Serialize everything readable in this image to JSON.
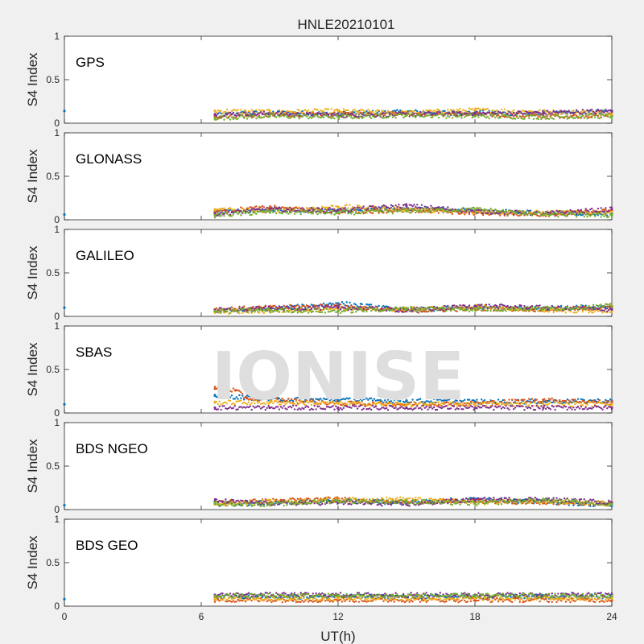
{
  "chart_data": {
    "type": "scatter",
    "title": "HNLE20210101",
    "xlabel": "UT(h)",
    "ylabel": "S4 Index",
    "xlim": [
      0,
      24
    ],
    "ylim": [
      0,
      1
    ],
    "xticks": [
      "0",
      "6",
      "12",
      "18",
      "24"
    ],
    "yticks": [
      "0",
      "0.5",
      "1"
    ],
    "watermark": "IONISE",
    "grid": false,
    "colors": [
      "#0072BD",
      "#D95319",
      "#EDB120",
      "#7E2F8E",
      "#77AC30",
      "#4DBEEE",
      "#A2142F"
    ],
    "panels": [
      {
        "label": "GPS",
        "series": [
          {
            "x": [
              0,
              6.6,
              9,
              12,
              15,
              18,
              21,
              24
            ],
            "y": [
              0.14,
              0.1,
              0.12,
              0.11,
              0.13,
              0.12,
              0.11,
              0.13
            ]
          },
          {
            "x": [
              6.6,
              9,
              12,
              15,
              18,
              21,
              24
            ],
            "y": [
              0.08,
              0.09,
              0.1,
              0.12,
              0.1,
              0.08,
              0.09
            ]
          },
          {
            "x": [
              6.6,
              9,
              12,
              15,
              18,
              21,
              24
            ],
            "y": [
              0.14,
              0.13,
              0.14,
              0.12,
              0.15,
              0.13,
              0.12
            ]
          },
          {
            "x": [
              6.6,
              9,
              12,
              15,
              18,
              21,
              24
            ],
            "y": [
              0.1,
              0.11,
              0.09,
              0.1,
              0.11,
              0.12,
              0.14
            ]
          },
          {
            "x": [
              6.6,
              9,
              12,
              15,
              18,
              21,
              24
            ],
            "y": [
              0.06,
              0.08,
              0.07,
              0.09,
              0.08,
              0.07,
              0.08
            ]
          }
        ]
      },
      {
        "label": "GLONASS",
        "series": [
          {
            "x": [
              0,
              6.6,
              9,
              12,
              15,
              18,
              21,
              24
            ],
            "y": [
              0.06,
              0.08,
              0.12,
              0.1,
              0.13,
              0.1,
              0.08,
              0.07
            ]
          },
          {
            "x": [
              6.6,
              9,
              12,
              15,
              18,
              21,
              24
            ],
            "y": [
              0.1,
              0.14,
              0.09,
              0.11,
              0.08,
              0.06,
              0.1
            ]
          },
          {
            "x": [
              6.6,
              9,
              12,
              15,
              18,
              21,
              24
            ],
            "y": [
              0.12,
              0.1,
              0.15,
              0.12,
              0.09,
              0.08,
              0.09
            ]
          },
          {
            "x": [
              6.6,
              9,
              12,
              15,
              18,
              21,
              24
            ],
            "y": [
              0.07,
              0.12,
              0.11,
              0.16,
              0.1,
              0.07,
              0.12
            ]
          },
          {
            "x": [
              6.6,
              9,
              12,
              15,
              18,
              21,
              24
            ],
            "y": [
              0.05,
              0.09,
              0.08,
              0.1,
              0.12,
              0.06,
              0.05
            ]
          }
        ]
      },
      {
        "label": "GALILEO",
        "series": [
          {
            "x": [
              0,
              6.6,
              9,
              12,
              15,
              18,
              21,
              24
            ],
            "y": [
              0.1,
              0.06,
              0.08,
              0.15,
              0.07,
              0.1,
              0.09,
              0.11
            ]
          },
          {
            "x": [
              6.6,
              9,
              12,
              15,
              18,
              21,
              24
            ],
            "y": [
              0.08,
              0.1,
              0.12,
              0.06,
              0.09,
              0.08,
              0.1
            ]
          },
          {
            "x": [
              6.6,
              9,
              12,
              15,
              18,
              21,
              24
            ],
            "y": [
              0.05,
              0.06,
              0.09,
              0.08,
              0.11,
              0.07,
              0.06
            ]
          },
          {
            "x": [
              6.6,
              9,
              12,
              15,
              18,
              21,
              24
            ],
            "y": [
              0.07,
              0.09,
              0.1,
              0.07,
              0.12,
              0.1,
              0.08
            ]
          },
          {
            "x": [
              6.6,
              9,
              12,
              15,
              18,
              21,
              24
            ],
            "y": [
              0.06,
              0.07,
              0.06,
              0.09,
              0.08,
              0.09,
              0.12
            ]
          }
        ]
      },
      {
        "label": "SBAS",
        "series": [
          {
            "x": [
              0,
              6.6,
              9,
              12,
              15,
              18,
              21,
              24
            ],
            "y": [
              0.1,
              0.2,
              0.16,
              0.15,
              0.14,
              0.13,
              0.13,
              0.14
            ]
          },
          {
            "x": [
              6.6,
              7.5,
              8,
              12,
              15,
              18,
              21,
              24
            ],
            "y": [
              0.28,
              0.26,
              0.17,
              0.11,
              0.1,
              0.11,
              0.15,
              0.12
            ]
          },
          {
            "x": [
              6.6,
              9,
              12,
              15,
              18,
              21,
              24
            ],
            "y": [
              0.12,
              0.12,
              0.11,
              0.1,
              0.1,
              0.1,
              0.1
            ]
          },
          {
            "x": [
              6.6,
              9,
              12,
              15,
              18,
              21,
              24
            ],
            "y": [
              0.06,
              0.06,
              0.06,
              0.06,
              0.06,
              0.06,
              0.06
            ]
          }
        ]
      },
      {
        "label": "BDS NGEO",
        "series": [
          {
            "x": [
              0,
              6.6,
              9,
              12,
              15,
              18,
              21,
              24
            ],
            "y": [
              0.05,
              0.06,
              0.08,
              0.1,
              0.08,
              0.12,
              0.09,
              0.05
            ]
          },
          {
            "x": [
              6.6,
              9,
              12,
              15,
              18,
              21,
              24
            ],
            "y": [
              0.08,
              0.1,
              0.12,
              0.09,
              0.1,
              0.08,
              0.07
            ]
          },
          {
            "x": [
              6.6,
              9,
              12,
              15,
              18,
              21,
              24
            ],
            "y": [
              0.06,
              0.09,
              0.11,
              0.12,
              0.08,
              0.1,
              0.06
            ]
          },
          {
            "x": [
              6.6,
              9,
              12,
              15,
              18,
              21,
              24
            ],
            "y": [
              0.1,
              0.07,
              0.08,
              0.06,
              0.11,
              0.12,
              0.08
            ]
          },
          {
            "x": [
              6.6,
              9,
              12,
              15,
              18,
              21,
              24
            ],
            "y": [
              0.07,
              0.06,
              0.1,
              0.09,
              0.07,
              0.11,
              0.06
            ]
          }
        ]
      },
      {
        "label": "BDS GEO",
        "series": [
          {
            "x": [
              0,
              6.6,
              12,
              18,
              24
            ],
            "y": [
              0.08,
              0.11,
              0.11,
              0.11,
              0.11
            ]
          },
          {
            "x": [
              6.6,
              12,
              18,
              24
            ],
            "y": [
              0.07,
              0.07,
              0.07,
              0.07
            ]
          },
          {
            "x": [
              6.6,
              12,
              18,
              24
            ],
            "y": [
              0.09,
              0.09,
              0.09,
              0.09
            ]
          },
          {
            "x": [
              6.6,
              12,
              18,
              24
            ],
            "y": [
              0.13,
              0.13,
              0.13,
              0.13
            ]
          },
          {
            "x": [
              6.6,
              12,
              18,
              24
            ],
            "y": [
              0.12,
              0.12,
              0.12,
              0.12
            ]
          }
        ]
      }
    ]
  }
}
